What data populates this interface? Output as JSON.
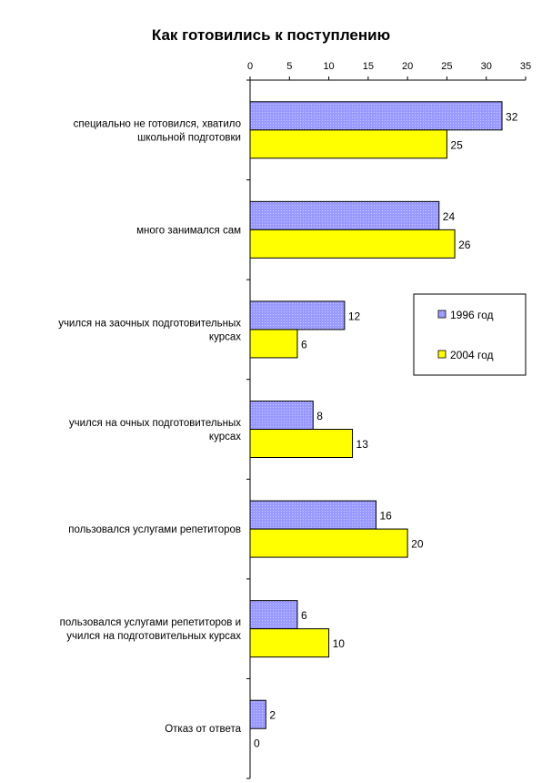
{
  "chart_data": {
    "type": "bar",
    "orientation": "horizontal",
    "title": "Как готовились к поступлению",
    "xlabel": "",
    "ylabel": "",
    "xlim": [
      0,
      35
    ],
    "ticks": [
      0,
      5,
      10,
      15,
      20,
      25,
      30,
      35
    ],
    "x_axis_position": "top",
    "grid": false,
    "legend_position": "right",
    "categories": [
      [
        "специально не готовился, хватило",
        "школьной подготовки"
      ],
      [
        "много занимался сам"
      ],
      [
        "учился на заочных подготовительных",
        "курсах"
      ],
      [
        "учился на очных подготовительных",
        "курсах"
      ],
      [
        "пользовался услугами репетиторов"
      ],
      [
        "пользовался услугами репетиторов и",
        "учился на подготовительных курсах"
      ],
      [
        "Отказ от ответа"
      ]
    ],
    "series": [
      {
        "name": "1996 год",
        "color": "#9999ff",
        "pattern": "dotted",
        "values": [
          32,
          24,
          12,
          8,
          16,
          6,
          2
        ]
      },
      {
        "name": "2004 год",
        "color": "#ffff00",
        "values": [
          25,
          26,
          6,
          13,
          20,
          10,
          0
        ]
      }
    ]
  }
}
